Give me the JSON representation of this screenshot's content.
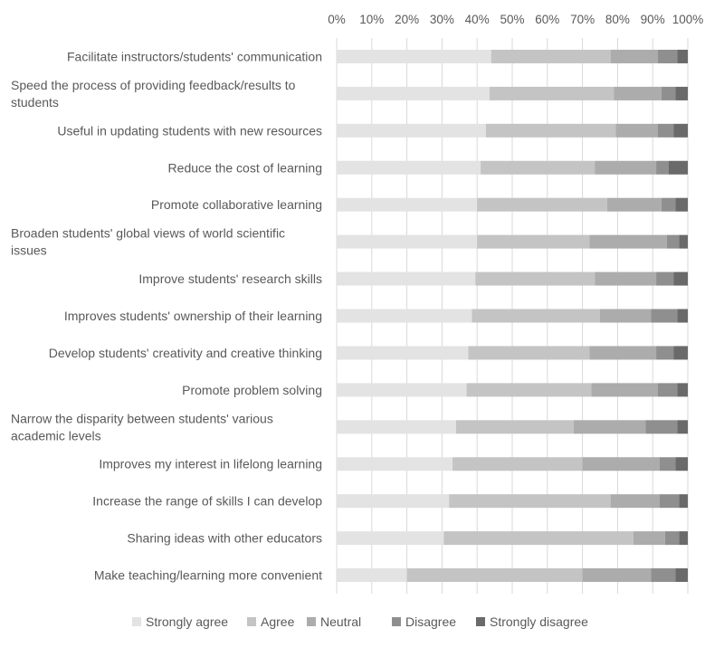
{
  "chart_data": {
    "type": "bar",
    "orientation": "horizontal",
    "stacked": "percent",
    "title": "",
    "xlabel": "",
    "ylabel": "",
    "xlim": [
      0,
      100
    ],
    "x_ticks": [
      "0%",
      "10%",
      "20%",
      "30%",
      "40%",
      "50%",
      "60%",
      "70%",
      "80%",
      "90%",
      "100%"
    ],
    "x_axis_position": "top",
    "grid": "vertical",
    "legend_position": "bottom",
    "categories": [
      [
        "Facilitate instructors/students' communication"
      ],
      [
        "Speed the process of providing feedback/results to",
        "students"
      ],
      [
        "Useful in updating students with new resources"
      ],
      [
        "Reduce the cost of learning"
      ],
      [
        "Promote collaborative learning"
      ],
      [
        "Broaden students' global views of world scientific",
        "issues"
      ],
      [
        "Improve students' research skills"
      ],
      [
        "Improves students' ownership of their learning"
      ],
      [
        "Develop students' creativity and creative thinking"
      ],
      [
        "Promote problem solving"
      ],
      [
        "Narrow the disparity between students' various",
        "academic levels"
      ],
      [
        "Improves my interest in lifelong learning"
      ],
      [
        "Increase the range of skills I can develop"
      ],
      [
        "Sharing ideas with other educators"
      ],
      [
        "Make teaching/learning more convenient"
      ]
    ],
    "series": [
      {
        "name": "Strongly agree",
        "color": "#e3e3e3",
        "values": [
          44,
          43.5,
          42.5,
          41,
          40,
          40,
          39.5,
          38.5,
          37.5,
          37,
          34,
          33,
          32,
          30.5,
          20
        ]
      },
      {
        "name": "Agree",
        "color": "#c4c4c4",
        "values": [
          34,
          35.5,
          37,
          32.5,
          37,
          32,
          34,
          36.5,
          34.5,
          35.5,
          33.5,
          37,
          46,
          54,
          50
        ]
      },
      {
        "name": "Neutral",
        "color": "#acacac",
        "values": [
          13.5,
          13.5,
          12,
          17.5,
          15.5,
          22,
          17.5,
          14.5,
          19,
          19,
          20.5,
          22,
          14,
          9,
          19.5
        ]
      },
      {
        "name": "Disagree",
        "color": "#8f8f8f",
        "values": [
          5.5,
          4,
          4.5,
          3.5,
          4,
          3.5,
          5,
          7.5,
          5,
          5.5,
          9,
          4.5,
          5.5,
          4,
          7
        ]
      },
      {
        "name": "Strongly disagree",
        "color": "#6a6a6a",
        "values": [
          3,
          3.5,
          4,
          5.5,
          3.5,
          2.5,
          4,
          3,
          4,
          3,
          3,
          3.5,
          2.5,
          2.5,
          3.5
        ]
      }
    ]
  }
}
